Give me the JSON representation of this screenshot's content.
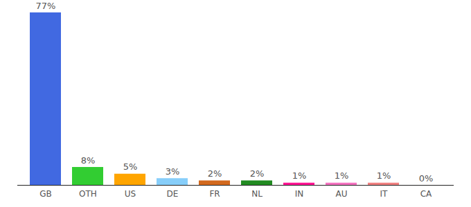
{
  "chart_data": {
    "type": "bar",
    "categories": [
      "GB",
      "OTH",
      "US",
      "DE",
      "FR",
      "NL",
      "IN",
      "AU",
      "IT",
      "CA"
    ],
    "values": [
      77,
      8,
      5,
      3,
      2,
      2,
      1,
      1,
      1,
      0
    ],
    "value_labels": [
      "77%",
      "8%",
      "5%",
      "3%",
      "2%",
      "2%",
      "1%",
      "1%",
      "1%",
      "0%"
    ],
    "colors": [
      "#4169e1",
      "#32cd32",
      "#ffa500",
      "#87cefa",
      "#d2691e",
      "#228b22",
      "#ff1493",
      "#f472c0",
      "#f08080",
      "#ff6347"
    ],
    "data_labels": true,
    "tick_labels": "x",
    "grid": false
  }
}
